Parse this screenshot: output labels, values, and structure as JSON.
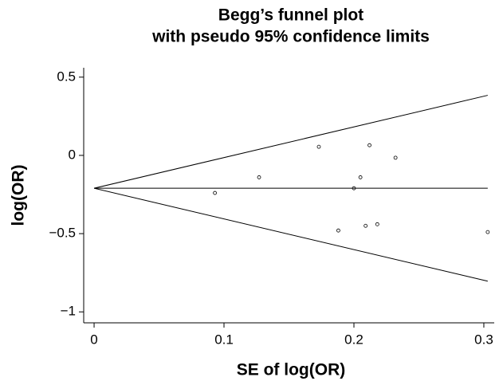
{
  "chart_data": {
    "type": "scatter",
    "title": [
      "Begg’s funnel plot",
      "with pseudo 95% confidence limits"
    ],
    "x_label": "SE of log(OR)",
    "y_label": "log(OR)",
    "x": [
      0.093,
      0.127,
      0.173,
      0.188,
      0.2,
      0.205,
      0.209,
      0.212,
      0.218,
      0.232,
      0.303
    ],
    "values": [
      -0.24,
      -0.14,
      0.055,
      -0.48,
      -0.21,
      -0.14,
      -0.45,
      0.065,
      -0.44,
      -0.015,
      -0.49
    ],
    "color": "#000000",
    "lines": [
      {
        "x": [
          0,
          0.303
        ],
        "values": [
          -0.21,
          -0.21
        ]
      },
      {
        "x": [
          0,
          0.303
        ],
        "values": [
          -0.21,
          0.384
        ]
      },
      {
        "x": [
          0,
          0.303
        ],
        "values": [
          -0.21,
          -0.804
        ]
      }
    ],
    "xlim": [
      -0.008,
      0.308
    ],
    "xticks": [
      0,
      0.1,
      0.2,
      0.3
    ],
    "ylim": [
      -1.07,
      0.56
    ],
    "yticks": [
      {
        "value": -1,
        "label": "−1"
      },
      {
        "value": -0.5,
        "label": "−0.5"
      },
      0,
      0.5
    ]
  }
}
